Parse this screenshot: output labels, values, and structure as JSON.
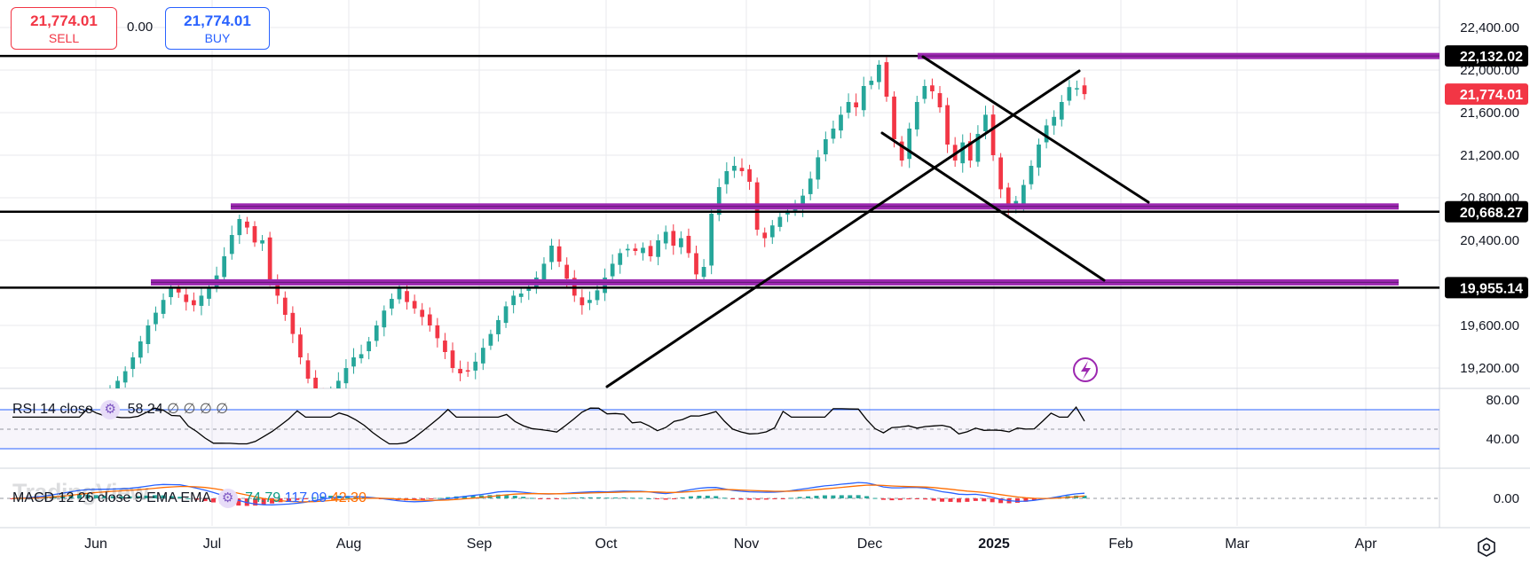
{
  "trade": {
    "sell_price": "21,774.01",
    "sell_label": "SELL",
    "spread": "0.00",
    "buy_price": "21,774.01",
    "buy_label": "BUY"
  },
  "watermark": "TradingView",
  "rsi": {
    "label": "RSI 14 close",
    "value": "58.24",
    "extra": "∅ ∅ ∅ ∅"
  },
  "macd": {
    "label": "MACD 12 26 close 9 EMA EMA",
    "v1": "74.79",
    "v2": "117.09",
    "v3": "42.30"
  },
  "colors": {
    "up": "#26a69a",
    "down": "#f23645",
    "level": "#9c27b0",
    "buy": "#2962ff",
    "macd": "#2962ff",
    "signal": "#ff6d00"
  },
  "chart_data": {
    "type": "candlestick",
    "x_axis": {
      "labels": [
        "Jun",
        "Jul",
        "Aug",
        "Sep",
        "Oct",
        "Nov",
        "Dec",
        "2025",
        "Feb",
        "Mar",
        "Apr"
      ]
    },
    "y_axis": {
      "ticks": [
        "22,400.00",
        "22,000.00",
        "21,600.00",
        "21,200.00",
        "20,800.00",
        "20,400.00",
        "19,600.00",
        "19,200.00"
      ],
      "range": [
        19000,
        22600
      ]
    },
    "price_labels": [
      {
        "text": "22,132.02",
        "value": 22132.02,
        "style": "dark"
      },
      {
        "text": "21,774.01",
        "value": 21774.01,
        "style": "red"
      },
      {
        "text": "20,668.27",
        "value": 20668.27,
        "style": "dark"
      },
      {
        "text": "19,955.14",
        "value": 19955.14,
        "style": "dark"
      }
    ],
    "horizontal_levels": [
      22132.02,
      20668.27,
      19955.14
    ],
    "close_series": [
      19000,
      19080,
      19170,
      19300,
      19450,
      19600,
      19720,
      19840,
      19950,
      19910,
      19820,
      19790,
      19880,
      19950,
      20070,
      20250,
      20450,
      20600,
      20520,
      20380,
      20400,
      20020,
      19880,
      19700,
      19520,
      19300,
      19100,
      18950,
      18880,
      18950,
      19080,
      19200,
      19300,
      19330,
      19450,
      19600,
      19740,
      19850,
      19950,
      19820,
      19760,
      19680,
      19600,
      19480,
      19350,
      19200,
      19150,
      19170,
      19260,
      19390,
      19520,
      19650,
      19780,
      19880,
      19900,
      19960,
      20050,
      20180,
      20350,
      20200,
      20040,
      19880,
      19790,
      19840,
      19930,
      20050,
      20180,
      20280,
      20320,
      20300,
      20330,
      20250,
      20400,
      20480,
      20350,
      20420,
      20280,
      20080,
      20150,
      20650,
      20900,
      21050,
      21100,
      21050,
      20950,
      20500,
      20420,
      20540,
      20620,
      20680,
      20720,
      20820,
      20980,
      21180,
      21350,
      21450,
      21580,
      21700,
      21650,
      21850,
      21900,
      22050,
      21750,
      21350,
      21150,
      21450,
      21700,
      21850,
      21800,
      21650,
      21300,
      21150,
      21320,
      21150,
      21400,
      21580,
      21200,
      20880,
      20700,
      20770,
      20920,
      21100,
      21300,
      21480,
      21560,
      21700,
      21840,
      21830,
      21774
    ],
    "rsi": {
      "ticks": [
        "80.00",
        "40.00"
      ],
      "levels": [
        70,
        50,
        30
      ],
      "last": 58.24
    },
    "macd": {
      "ticks": [
        "0.00"
      ],
      "macd": 74.79,
      "signal": 117.09,
      "histogram": 42.3
    }
  }
}
